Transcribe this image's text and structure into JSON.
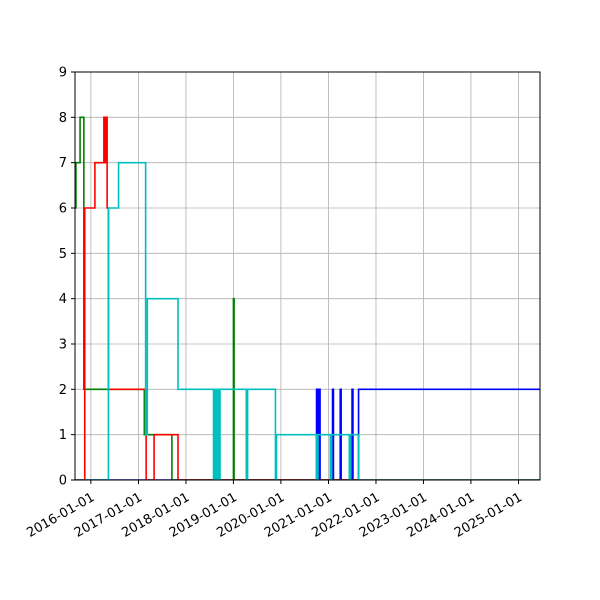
{
  "chart_data": {
    "type": "line",
    "title": "",
    "xlabel": "",
    "ylabel": "",
    "xlim": [
      "2015-09-01",
      "2025-06-15"
    ],
    "ylim": [
      0,
      9
    ],
    "grid": true,
    "legend": "none",
    "x_ticks": [
      "2016-01-01",
      "2017-01-01",
      "2018-01-01",
      "2019-01-01",
      "2020-01-01",
      "2021-01-01",
      "2022-01-01",
      "2023-01-01",
      "2024-01-01",
      "2025-01-01"
    ],
    "y_ticks": [
      0,
      1,
      2,
      3,
      4,
      5,
      6,
      7,
      8,
      9
    ],
    "series": [
      {
        "color": "#0000ff",
        "step": true,
        "points": [
          [
            "2015-09-01",
            0
          ],
          [
            "2020-10-01",
            0
          ],
          [
            "2020-10-01",
            2
          ],
          [
            "2020-10-10",
            2
          ],
          [
            "2020-10-10",
            0
          ],
          [
            "2020-10-20",
            0
          ],
          [
            "2020-10-20",
            2
          ],
          [
            "2020-10-28",
            2
          ],
          [
            "2020-10-28",
            0
          ],
          [
            "2021-02-01",
            0
          ],
          [
            "2021-02-01",
            2
          ],
          [
            "2021-02-08",
            2
          ],
          [
            "2021-02-08",
            0
          ],
          [
            "2021-04-01",
            0
          ],
          [
            "2021-04-01",
            2
          ],
          [
            "2021-04-08",
            2
          ],
          [
            "2021-04-08",
            0
          ],
          [
            "2021-07-01",
            0
          ],
          [
            "2021-07-01",
            2
          ],
          [
            "2021-07-08",
            2
          ],
          [
            "2021-07-08",
            0
          ],
          [
            "2021-08-20",
            0
          ],
          [
            "2021-08-20",
            2
          ],
          [
            "2025-06-15",
            2
          ]
        ]
      },
      {
        "color": "#008000",
        "step": true,
        "points": [
          [
            "2015-09-01",
            6
          ],
          [
            "2015-09-08",
            6
          ],
          [
            "2015-09-08",
            7
          ],
          [
            "2015-10-10",
            7
          ],
          [
            "2015-10-10",
            8
          ],
          [
            "2015-11-08",
            8
          ],
          [
            "2015-11-08",
            2
          ],
          [
            "2017-02-15",
            2
          ],
          [
            "2017-02-15",
            1
          ],
          [
            "2017-09-15",
            1
          ],
          [
            "2017-09-15",
            0
          ],
          [
            "2019-01-01",
            0
          ],
          [
            "2019-01-01",
            4
          ],
          [
            "2019-01-06",
            4
          ],
          [
            "2019-01-06",
            0
          ],
          [
            "2025-06-15",
            0
          ]
        ]
      },
      {
        "color": "#ff0000",
        "step": true,
        "points": [
          [
            "2015-09-01",
            0
          ],
          [
            "2015-11-15",
            0
          ],
          [
            "2015-11-15",
            6
          ],
          [
            "2016-02-01",
            6
          ],
          [
            "2016-02-01",
            7
          ],
          [
            "2016-04-10",
            7
          ],
          [
            "2016-04-10",
            8
          ],
          [
            "2016-04-20",
            8
          ],
          [
            "2016-04-20",
            7
          ],
          [
            "2016-04-28",
            7
          ],
          [
            "2016-04-28",
            8
          ],
          [
            "2016-05-05",
            8
          ],
          [
            "2016-05-05",
            6
          ],
          [
            "2016-05-15",
            6
          ],
          [
            "2016-05-15",
            2
          ],
          [
            "2017-03-01",
            2
          ],
          [
            "2017-03-01",
            0
          ],
          [
            "2017-05-01",
            0
          ],
          [
            "2017-05-01",
            1
          ],
          [
            "2017-11-01",
            1
          ],
          [
            "2017-11-01",
            0
          ],
          [
            "2025-06-15",
            0
          ]
        ]
      },
      {
        "color": "#00bfbf",
        "step": true,
        "points": [
          [
            "2015-09-01",
            0
          ],
          [
            "2016-05-15",
            0
          ],
          [
            "2016-05-15",
            6
          ],
          [
            "2016-08-01",
            6
          ],
          [
            "2016-08-01",
            7
          ],
          [
            "2017-02-25",
            7
          ],
          [
            "2017-02-25",
            1
          ],
          [
            "2017-03-10",
            1
          ],
          [
            "2017-03-10",
            4
          ],
          [
            "2017-11-01",
            4
          ],
          [
            "2017-11-01",
            2
          ],
          [
            "2018-08-01",
            2
          ],
          [
            "2018-08-01",
            0
          ],
          [
            "2018-08-10",
            0
          ],
          [
            "2018-08-10",
            2
          ],
          [
            "2018-08-20",
            2
          ],
          [
            "2018-08-20",
            0
          ],
          [
            "2018-09-01",
            0
          ],
          [
            "2018-09-01",
            2
          ],
          [
            "2018-09-10",
            2
          ],
          [
            "2018-09-10",
            0
          ],
          [
            "2018-09-20",
            0
          ],
          [
            "2018-09-20",
            2
          ],
          [
            "2019-04-10",
            2
          ],
          [
            "2019-04-10",
            0
          ],
          [
            "2019-04-20",
            0
          ],
          [
            "2019-04-20",
            2
          ],
          [
            "2019-11-20",
            2
          ],
          [
            "2019-11-20",
            0
          ],
          [
            "2019-11-28",
            0
          ],
          [
            "2019-11-28",
            1
          ],
          [
            "2020-10-01",
            1
          ],
          [
            "2020-10-01",
            0
          ],
          [
            "2020-10-12",
            0
          ],
          [
            "2020-10-12",
            1
          ],
          [
            "2021-01-15",
            1
          ],
          [
            "2021-01-15",
            0
          ],
          [
            "2021-01-25",
            0
          ],
          [
            "2021-01-25",
            1
          ],
          [
            "2021-06-10",
            1
          ],
          [
            "2021-06-10",
            0
          ],
          [
            "2021-06-20",
            0
          ],
          [
            "2021-06-20",
            1
          ],
          [
            "2021-08-20",
            1
          ],
          [
            "2021-08-20",
            0
          ],
          [
            "2025-06-15",
            0
          ]
        ]
      }
    ]
  }
}
